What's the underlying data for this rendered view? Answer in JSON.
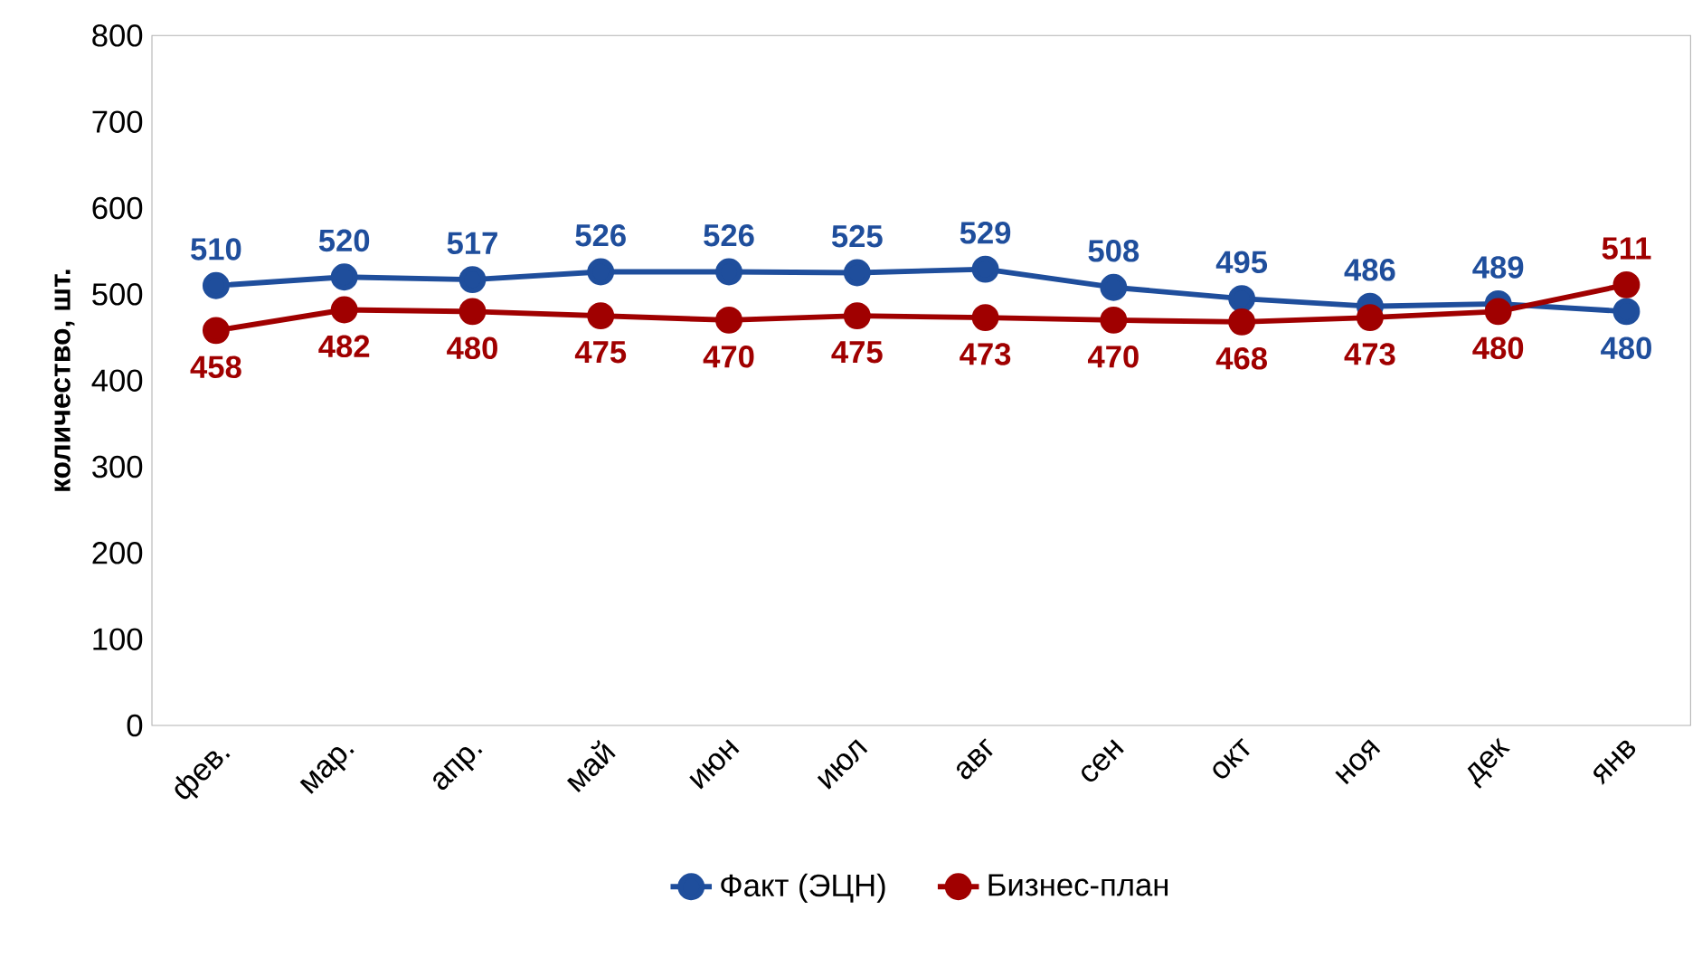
{
  "chart_data": {
    "type": "line",
    "ylabel": "количество, шт.",
    "categories": [
      "фев.",
      "мар.",
      "апр.",
      "май",
      "июн",
      "июл",
      "авг",
      "сен",
      "окт",
      "ноя",
      "дек",
      "янв"
    ],
    "series": [
      {
        "name": "Факт (ЭЦН)",
        "color": "#1f4e9c",
        "values": [
          510,
          520,
          517,
          526,
          526,
          525,
          529,
          508,
          495,
          486,
          489,
          480
        ]
      },
      {
        "name": "Бизнес-план",
        "color": "#a00000",
        "values": [
          458,
          482,
          480,
          475,
          470,
          475,
          473,
          470,
          468,
          473,
          480,
          511
        ]
      }
    ],
    "ylim": [
      0,
      800
    ],
    "yticks": [
      0,
      100,
      200,
      300,
      400,
      500,
      600,
      700,
      800
    ],
    "data_labels": true,
    "legend": "bottom",
    "marker": "circle",
    "line_style": "solid",
    "grid": false
  }
}
